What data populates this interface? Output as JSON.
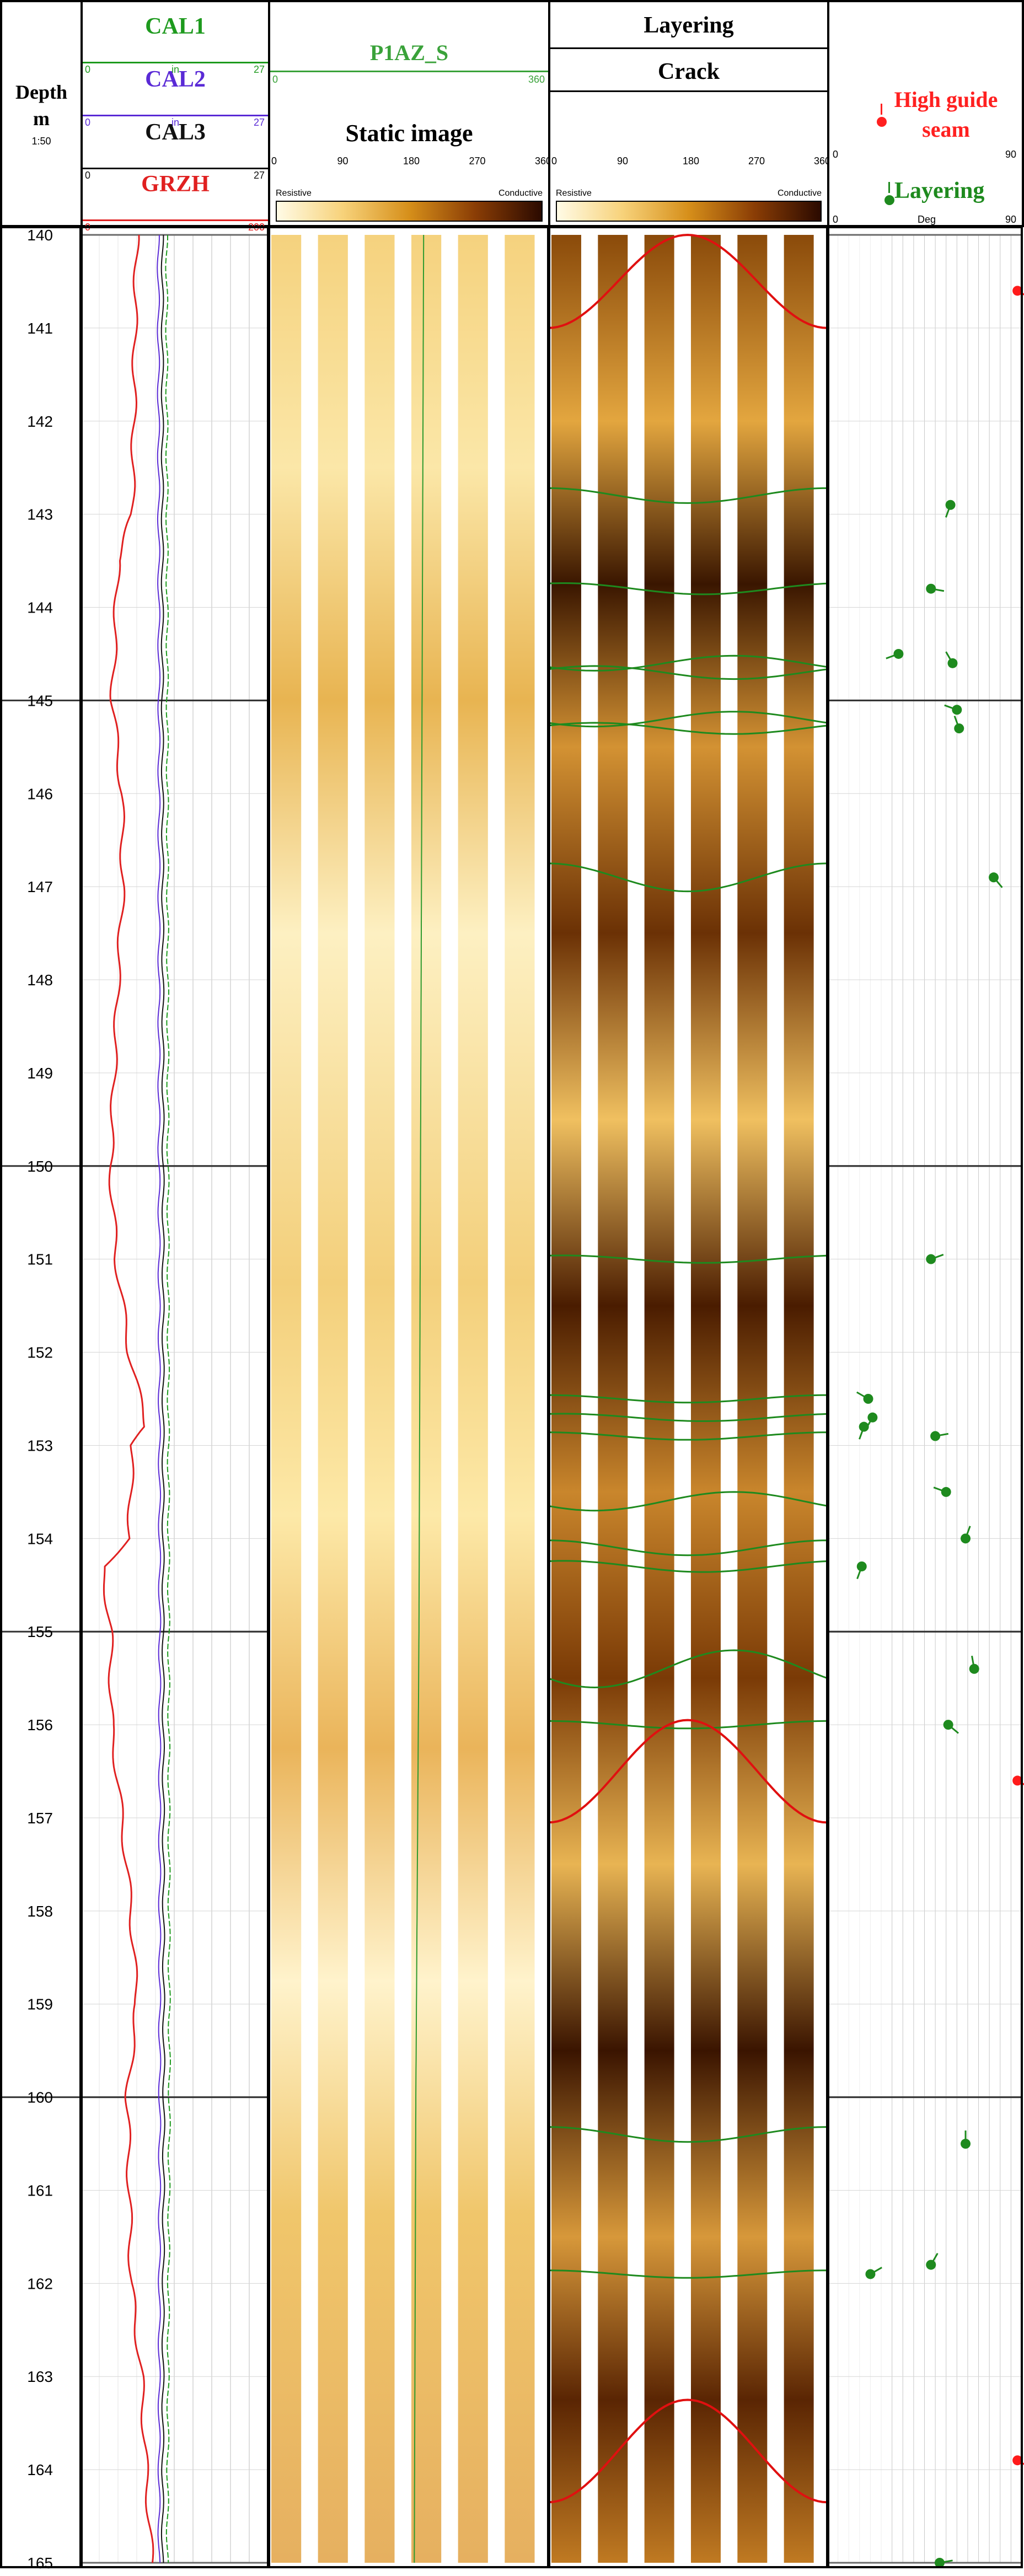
{
  "header": {
    "depth_title": "Depth",
    "depth_unit": "m",
    "depth_scale": "1:50",
    "curves": [
      {
        "name": "CAL1",
        "color": "#1e9a1e",
        "min": "0",
        "unit": "in",
        "max": "27"
      },
      {
        "name": "CAL2",
        "color": "#5a2ad6",
        "min": "0",
        "unit": "in",
        "max": "27"
      },
      {
        "name": "CAL3",
        "color": "#111111",
        "min": "0",
        "unit": "",
        "max": "27"
      },
      {
        "name": "GRZH",
        "color": "#e02020",
        "min": "0",
        "unit": "",
        "max": "200"
      }
    ],
    "static": {
      "curve_name": "P1AZ_S",
      "curve_color": "#3aa23a",
      "curve_min": "0",
      "curve_max": "360",
      "title": "Static image",
      "scale": [
        "0",
        "90",
        "180",
        "270",
        "360"
      ],
      "left_label": "Resistive",
      "right_label": "Conductive"
    },
    "dynamic": {
      "layering_title": "Layering",
      "crack_title": "Crack",
      "scale": [
        "0",
        "90",
        "180",
        "270",
        "360"
      ],
      "left_label": "Resistive",
      "right_label": "Conductive"
    },
    "dips": {
      "seam_title": "High guide seam",
      "seam_color": "#ff2020",
      "layer_title": "Layering",
      "layer_color": "#1e8a1e",
      "min": "0",
      "unit": "Deg",
      "max": "90"
    }
  },
  "chart_data": {
    "type": "well-log",
    "depth_range": [
      140,
      165
    ],
    "depth_ticks": [
      140,
      141,
      142,
      143,
      144,
      145,
      146,
      147,
      148,
      149,
      150,
      151,
      152,
      153,
      154,
      155,
      156,
      157,
      158,
      159,
      160,
      161,
      162,
      163,
      164,
      165
    ],
    "curves": {
      "GRZH": {
        "color": "#e02020",
        "range": [
          0,
          200
        ],
        "depth": [
          140,
          141,
          142,
          143,
          143.5,
          144,
          145,
          146,
          147,
          148,
          149,
          150,
          151,
          152,
          152.8,
          153,
          154,
          154.3,
          155,
          156,
          157,
          158,
          159,
          160,
          161,
          162,
          163,
          164,
          165
        ],
        "values": [
          60,
          58,
          57,
          55,
          40,
          38,
          34,
          44,
          45,
          40,
          36,
          32,
          38,
          52,
          70,
          55,
          52,
          24,
          32,
          33,
          44,
          54,
          60,
          50,
          52,
          54,
          65,
          70,
          76
        ]
      },
      "CAL1": {
        "color": "#1e9a1e",
        "range": [
          0,
          27
        ],
        "depth": [
          140,
          145,
          150,
          155,
          160,
          165
        ],
        "values": [
          12.4,
          12.5,
          12.6,
          12.7,
          12.8,
          12.5
        ]
      },
      "CAL2": {
        "color": "#5a2ad6",
        "range": [
          0,
          27
        ],
        "depth": [
          140,
          145,
          150,
          155,
          160,
          165
        ],
        "values": [
          11.2,
          11.3,
          11.3,
          11.4,
          11.4,
          11.3
        ]
      },
      "CAL3": {
        "color": "#111111",
        "range": [
          0,
          27
        ],
        "depth": [
          140,
          145,
          150,
          155,
          160,
          165
        ],
        "values": [
          11.8,
          11.8,
          11.9,
          11.9,
          12,
          11.8
        ]
      }
    },
    "P1AZ_S": {
      "range": [
        0,
        360
      ],
      "depth": [
        140,
        145,
        150,
        155,
        160,
        165
      ],
      "values": [
        200,
        198,
        196,
        194,
        190,
        188
      ]
    },
    "layering_sinusoids": [
      {
        "depth": 142.8,
        "amp": 0.08,
        "phase": 180
      },
      {
        "depth": 143.8,
        "amp": 0.06,
        "phase": 200
      },
      {
        "depth": 144.6,
        "amp": 0.08,
        "phase": 60
      },
      {
        "depth": 144.7,
        "amp": 0.07,
        "phase": 240
      },
      {
        "depth": 145.2,
        "amp": 0.08,
        "phase": 60
      },
      {
        "depth": 145.3,
        "amp": 0.06,
        "phase": 240
      },
      {
        "depth": 146.9,
        "amp": 0.15,
        "phase": 180
      },
      {
        "depth": 151.0,
        "amp": 0.04,
        "phase": 200
      },
      {
        "depth": 152.5,
        "amp": 0.04,
        "phase": 180
      },
      {
        "depth": 152.7,
        "amp": 0.04,
        "phase": 200
      },
      {
        "depth": 152.9,
        "amp": 0.04,
        "phase": 180
      },
      {
        "depth": 153.6,
        "amp": 0.1,
        "phase": 60
      },
      {
        "depth": 154.1,
        "amp": 0.08,
        "phase": 180
      },
      {
        "depth": 154.3,
        "amp": 0.06,
        "phase": 200
      },
      {
        "depth": 155.4,
        "amp": 0.2,
        "phase": 60
      },
      {
        "depth": 156.0,
        "amp": 0.04,
        "phase": 180
      },
      {
        "depth": 160.4,
        "amp": 0.08,
        "phase": 180
      },
      {
        "depth": 161.9,
        "amp": 0.04,
        "phase": 180
      }
    ],
    "crack_sinusoids": [
      {
        "depth": 140.5,
        "amp": 0.5,
        "phase": 0
      },
      {
        "depth": 156.5,
        "amp": 0.55,
        "phase": 0
      },
      {
        "depth": 163.8,
        "amp": 0.55,
        "phase": 0
      }
    ],
    "dip_range": [
      0,
      90
    ],
    "layering_dips": [
      {
        "depth": 142.9,
        "dip": 57,
        "azi": 200
      },
      {
        "depth": 143.8,
        "dip": 48,
        "azi": 100
      },
      {
        "depth": 144.5,
        "dip": 33,
        "azi": 250
      },
      {
        "depth": 144.6,
        "dip": 58,
        "azi": 330
      },
      {
        "depth": 145.1,
        "dip": 60,
        "azi": 290
      },
      {
        "depth": 145.3,
        "dip": 61,
        "azi": 340
      },
      {
        "depth": 146.9,
        "dip": 77,
        "azi": 140
      },
      {
        "depth": 151.0,
        "dip": 48,
        "azi": 70
      },
      {
        "depth": 152.5,
        "dip": 19,
        "azi": 300
      },
      {
        "depth": 152.7,
        "dip": 21,
        "azi": 210
      },
      {
        "depth": 152.8,
        "dip": 17,
        "azi": 200
      },
      {
        "depth": 152.9,
        "dip": 50,
        "azi": 80
      },
      {
        "depth": 153.5,
        "dip": 55,
        "azi": 290
      },
      {
        "depth": 154.0,
        "dip": 64,
        "azi": 20
      },
      {
        "depth": 154.3,
        "dip": 16,
        "azi": 200
      },
      {
        "depth": 155.4,
        "dip": 68,
        "azi": 350
      },
      {
        "depth": 156.0,
        "dip": 56,
        "azi": 130
      },
      {
        "depth": 160.5,
        "dip": 64,
        "azi": 0
      },
      {
        "depth": 161.9,
        "dip": 20,
        "azi": 60
      },
      {
        "depth": 161.8,
        "dip": 48,
        "azi": 30
      },
      {
        "depth": 165.0,
        "dip": 52,
        "azi": 80
      }
    ],
    "seam_dips": [
      {
        "depth": 140.6,
        "dip": 88,
        "azi": 120
      },
      {
        "depth": 156.6,
        "dip": 88,
        "azi": 120
      },
      {
        "depth": 163.9,
        "dip": 88,
        "azi": 120
      }
    ]
  }
}
